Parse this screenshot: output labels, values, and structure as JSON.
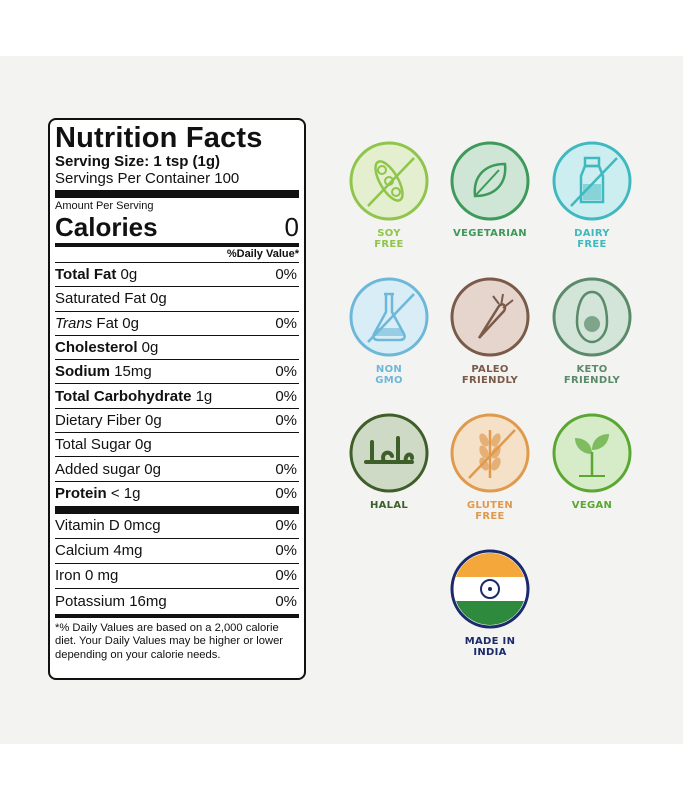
{
  "nutrition": {
    "title": "Nutrition Facts",
    "serving_size": "Serving Size: 1 tsp (1g)",
    "servings_per_container": "Servings Per Container 100",
    "amount_per_serving": "Amount Per Serving",
    "calories_label": "Calories",
    "calories_value": "0",
    "dv_header": "%Daily Value*",
    "rows_major": [
      {
        "label": "Total Fat",
        "amount": " 0g",
        "dv": "0%",
        "bold": true
      },
      {
        "label": "Saturated Fat",
        "amount": " 0g",
        "dv": "",
        "bold": false
      },
      {
        "label": "Trans",
        "amount": " Fat 0g",
        "dv": "0%",
        "bold": false
      },
      {
        "label": "Cholesterol",
        "amount": " 0g",
        "dv": "",
        "bold": true
      },
      {
        "label": "Sodium",
        "amount": " 15mg",
        "dv": "0%",
        "bold": true
      },
      {
        "label": "Total Carbohydrate",
        "amount": " 1g",
        "dv": "0%",
        "bold": true
      },
      {
        "label": "Dietary Fiber",
        "amount": " 0g",
        "dv": "0%",
        "bold": false
      },
      {
        "label": "Total Sugar",
        "amount": " 0g",
        "dv": "",
        "bold": false
      },
      {
        "label": "Added sugar",
        "amount": " 0g",
        "dv": "0%",
        "bold": false
      },
      {
        "label": "Protein",
        "amount": " < 1g",
        "dv": "0%",
        "bold": true
      }
    ],
    "rows_minor": [
      {
        "label": "Vitamin D 0mcg",
        "dv": "0%"
      },
      {
        "label": "Calcium 4mg",
        "dv": "0%"
      },
      {
        "label": "Iron 0 mg",
        "dv": "0%"
      },
      {
        "label": "Potassium 16mg",
        "dv": "0%"
      }
    ],
    "footnote": "*% Daily Values are based on a 2,000 calorie diet. Your Daily Values may be higher or lower depending on your calorie needs."
  },
  "badges": [
    {
      "label": "SOY\nFREE",
      "icon": "soy-icon",
      "color": "#8fc54a",
      "fill": "#e3efcf",
      "crossed": true
    },
    {
      "label": "VEGETARIAN",
      "icon": "leaf-icon",
      "color": "#3d9a5a",
      "fill": "#cfe6d6",
      "crossed": false
    },
    {
      "label": "DAIRY\nFREE",
      "icon": "milk-bottle-icon",
      "color": "#3fb9bf",
      "fill": "#cdeef0",
      "crossed": true
    },
    {
      "label": "NON\nGMO",
      "icon": "flask-icon",
      "color": "#6db8d9",
      "fill": "#d9edf6",
      "crossed": true
    },
    {
      "label": "PALEO\nFRIENDLY",
      "icon": "carrot-icon",
      "color": "#7a5a48",
      "fill": "#e6d5cc",
      "crossed": false
    },
    {
      "label": "KETO\nFRIENDLY",
      "icon": "avocado-icon",
      "color": "#5a8a6a",
      "fill": "#d3e4d8",
      "crossed": false
    },
    {
      "label": "HALAL",
      "icon": "halal-icon",
      "color": "#3f5f2a",
      "fill": "#cfdac6",
      "crossed": false
    },
    {
      "label": "GLUTEN\nFREE",
      "icon": "wheat-icon",
      "color": "#e09a4e",
      "fill": "#f5e0c8",
      "crossed": true
    },
    {
      "label": "VEGAN",
      "icon": "sprout-icon",
      "color": "#5aa832",
      "fill": "#d6ebc8",
      "crossed": false
    },
    {
      "label": "MADE IN\nINDIA",
      "icon": "india-flag-icon",
      "color": "#1b2a6b",
      "fill": "#ffffff",
      "crossed": false
    }
  ]
}
